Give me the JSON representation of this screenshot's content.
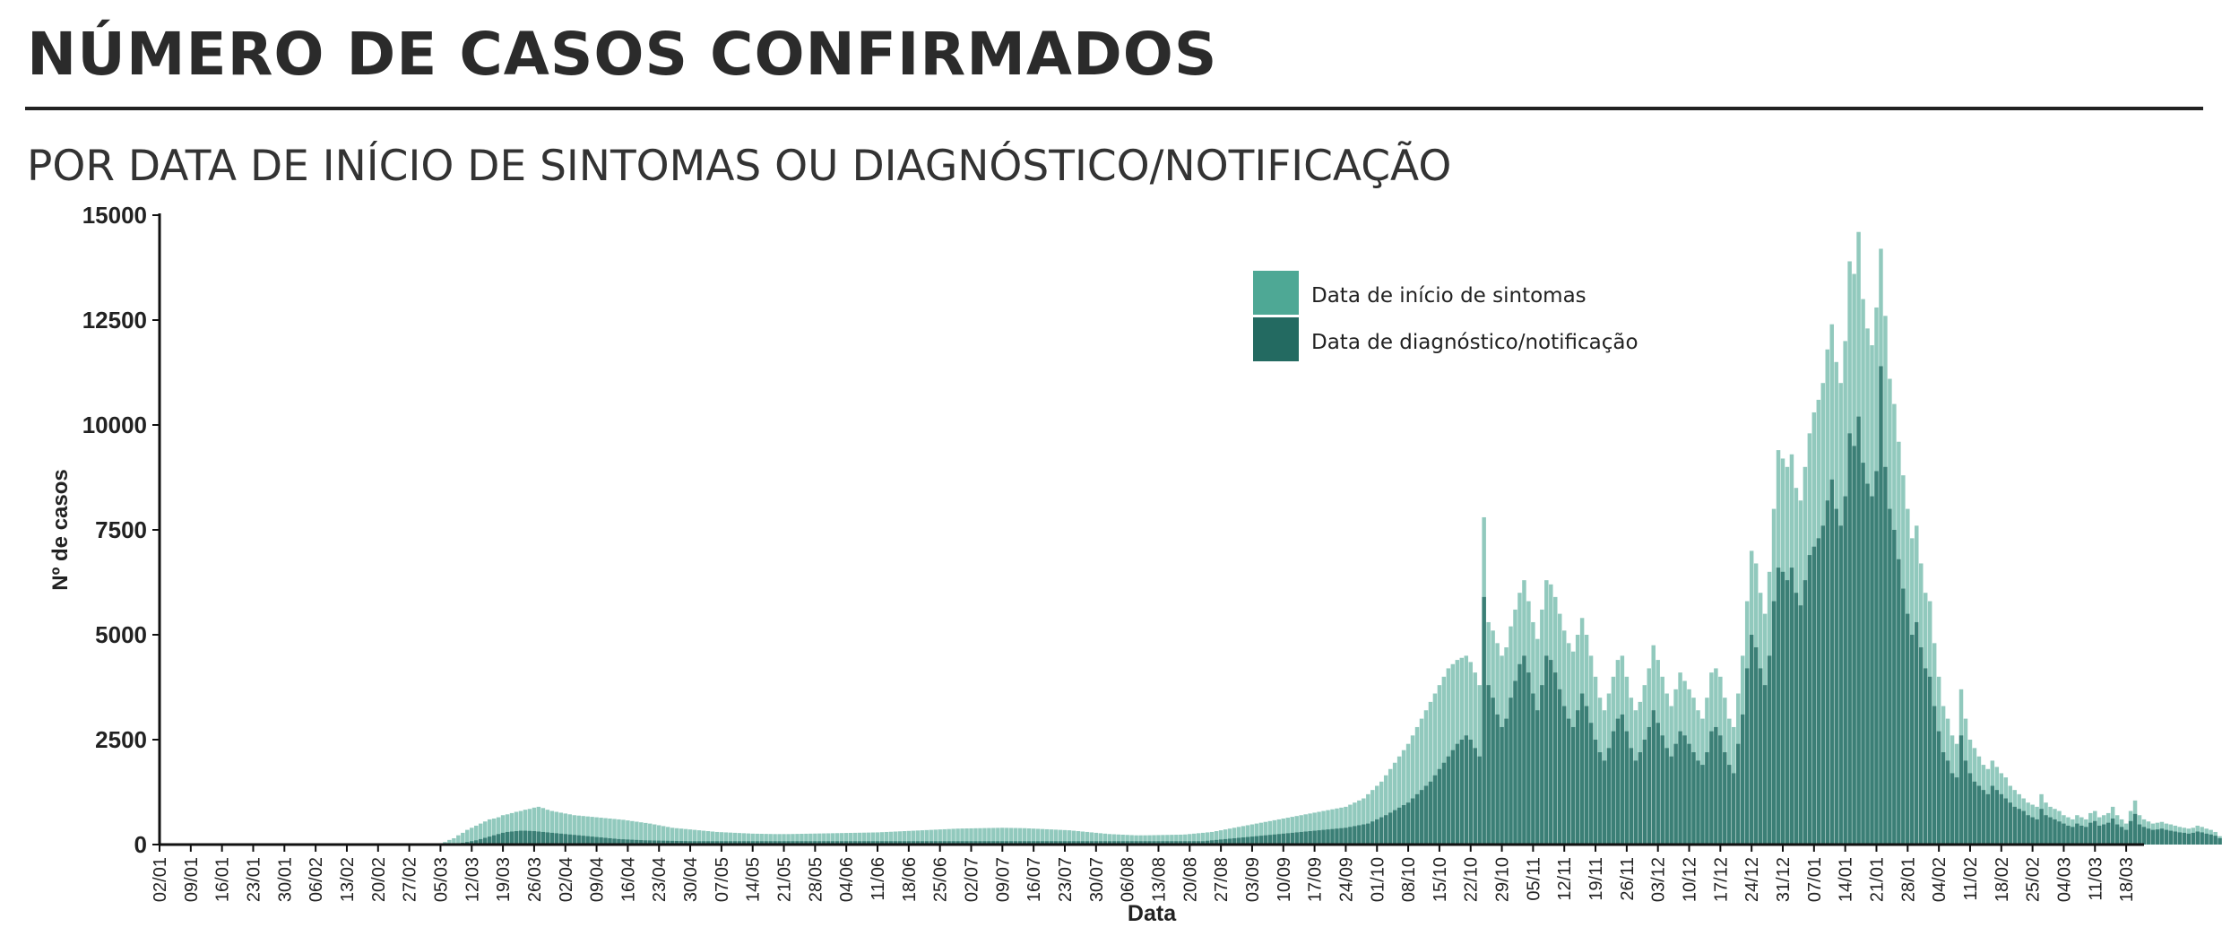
{
  "title": "NÚMERO DE CASOS CONFIRMADOS",
  "subtitle": "POR DATA DE INÍCIO DE SINTOMAS OU DIAGNÓSTICO/NOTIFICAÇÃO",
  "colors": {
    "symptoms": "#4ea895",
    "diagnosis": "#236a61",
    "axis": "#111111",
    "text": "#222222"
  },
  "chart_data": {
    "type": "bar",
    "xlabel": "Data",
    "ylabel": "Nº de casos",
    "ylim": [
      0,
      15000
    ],
    "yticks": [
      0,
      2500,
      5000,
      7500,
      10000,
      12500,
      15000
    ],
    "grid": false,
    "legend_position": "top-center",
    "bar_mode": "overlay",
    "start_date": "2020-01-02",
    "end_date": "2021-03-22",
    "xtick_labels": [
      "02/01",
      "09/01",
      "16/01",
      "23/01",
      "30/01",
      "06/02",
      "13/02",
      "20/02",
      "27/02",
      "05/03",
      "12/03",
      "19/03",
      "26/03",
      "02/04",
      "09/04",
      "16/04",
      "23/04",
      "30/04",
      "07/05",
      "14/05",
      "21/05",
      "28/05",
      "04/06",
      "11/06",
      "18/06",
      "25/06",
      "02/07",
      "09/07",
      "16/07",
      "23/07",
      "30/07",
      "06/08",
      "13/08",
      "20/08",
      "27/08",
      "03/09",
      "10/09",
      "17/09",
      "24/09",
      "01/10",
      "08/10",
      "15/10",
      "22/10",
      "29/10",
      "05/11",
      "12/11",
      "19/11",
      "26/11",
      "03/12",
      "10/12",
      "17/12",
      "24/12",
      "31/12",
      "07/01",
      "14/01",
      "21/01",
      "28/01",
      "04/02",
      "11/02",
      "18/02",
      "25/02",
      "04/03",
      "11/03",
      "18/03"
    ],
    "series": [
      {
        "name": "Data de início de sintomas",
        "x_start": "2020-03-02",
        "values": [
          0,
          0,
          5,
          30,
          60,
          110,
          150,
          220,
          280,
          350,
          400,
          450,
          500,
          550,
          600,
          620,
          650,
          700,
          720,
          750,
          780,
          800,
          830,
          850,
          880,
          900,
          870,
          830,
          800,
          780,
          760,
          740,
          720,
          700,
          690,
          680,
          670,
          660,
          650,
          640,
          630,
          620,
          610,
          600,
          590,
          575,
          560,
          545,
          530,
          515,
          500,
          480,
          460,
          440,
          420,
          400,
          390,
          380,
          370,
          360,
          350,
          340,
          330,
          320,
          310,
          300,
          295,
          290,
          285,
          280,
          275,
          270,
          265,
          260,
          258,
          256,
          254,
          252,
          250,
          250,
          250,
          250,
          252,
          254,
          256,
          258,
          260,
          262,
          264,
          266,
          268,
          270,
          272,
          274,
          276,
          278,
          280,
          282,
          284,
          286,
          288,
          290,
          295,
          300,
          305,
          310,
          315,
          320,
          325,
          330,
          335,
          340,
          345,
          350,
          355,
          360,
          365,
          370,
          375,
          380,
          382,
          384,
          386,
          388,
          390,
          392,
          394,
          396,
          398,
          400,
          398,
          396,
          394,
          392,
          390,
          385,
          380,
          375,
          370,
          365,
          360,
          355,
          350,
          345,
          340,
          330,
          320,
          310,
          300,
          290,
          280,
          270,
          260,
          250,
          245,
          240,
          235,
          230,
          225,
          220,
          220,
          220,
          222,
          224,
          226,
          228,
          230,
          232,
          234,
          236,
          240,
          250,
          260,
          270,
          280,
          290,
          300,
          320,
          340,
          360,
          380,
          400,
          420,
          440,
          460,
          480,
          500,
          520,
          540,
          560,
          580,
          600,
          620,
          640,
          660,
          680,
          700,
          720,
          740,
          760,
          780,
          800,
          820,
          840,
          860,
          880,
          900,
          950,
          1000,
          1050,
          1100,
          1200,
          1300,
          1400,
          1500,
          1650,
          1800,
          1950,
          2100,
          2250,
          2400,
          2600,
          2800,
          3000,
          3200,
          3400,
          3600,
          3800,
          4000,
          4200,
          4300,
          4400,
          4450,
          4500,
          4350,
          4100,
          3800,
          7800,
          5300,
          5100,
          4800,
          4500,
          4700,
          5200,
          5600,
          6000,
          6300,
          5800,
          5300,
          4900,
          5600,
          6300,
          6200,
          5900,
          5500,
          5100,
          4800,
          4600,
          5000,
          5400,
          5000,
          4500,
          4000,
          3500,
          3200,
          3600,
          4000,
          4400,
          4500,
          4000,
          3500,
          3200,
          3400,
          3800,
          4200,
          4750,
          4400,
          4000,
          3600,
          3300,
          3700,
          4100,
          3900,
          3700,
          3500,
          3200,
          3000,
          3500,
          4100,
          4200,
          4000,
          3500,
          3000,
          2800,
          3600,
          4500,
          5800,
          7000,
          6700,
          6000,
          5500,
          6500,
          8000,
          9400,
          9200,
          9000,
          9300,
          8500,
          8200,
          9000,
          9800,
          10300,
          10600,
          11000,
          11800,
          12400,
          11500,
          11000,
          12000,
          13900,
          13600,
          14600,
          13000,
          12300,
          11900,
          12800,
          14200,
          12600,
          11100,
          10500,
          9600,
          8800,
          8000,
          7300,
          7600,
          6700,
          6000,
          5800,
          4800,
          4000,
          3300,
          3000,
          2600,
          2400,
          3700,
          3000,
          2500,
          2300,
          2100,
          1900,
          1800,
          2000,
          1850,
          1700,
          1600,
          1400,
          1300,
          1200,
          1100,
          1000,
          950,
          900,
          1200,
          1000,
          900,
          850,
          800,
          700,
          650,
          600,
          700,
          650,
          600,
          750,
          800,
          650,
          700,
          750,
          900,
          700,
          600,
          500,
          800,
          1050,
          700,
          600,
          550,
          500,
          520,
          540,
          500,
          480,
          450,
          420,
          400,
          380,
          400,
          450,
          420,
          380,
          350,
          300,
          200,
          400,
          480
        ]
      },
      {
        "name": "Data de diagnóstico/notificação",
        "x_start": "2020-03-02",
        "values": [
          0,
          0,
          0,
          0,
          2,
          5,
          10,
          20,
          40,
          60,
          80,
          100,
          130,
          160,
          190,
          220,
          250,
          280,
          300,
          310,
          320,
          330,
          330,
          325,
          320,
          310,
          300,
          290,
          280,
          270,
          260,
          250,
          240,
          230,
          220,
          210,
          200,
          190,
          180,
          170,
          160,
          150,
          140,
          130,
          125,
          120,
          115,
          110,
          105,
          100,
          98,
          96,
          94,
          92,
          90,
          88,
          86,
          84,
          82,
          80,
          80,
          80,
          80,
          80,
          80,
          80,
          80,
          80,
          80,
          80,
          80,
          80,
          80,
          80,
          80,
          80,
          80,
          80,
          80,
          80,
          80,
          80,
          80,
          80,
          80,
          80,
          80,
          80,
          80,
          80,
          80,
          80,
          80,
          80,
          80,
          80,
          80,
          80,
          80,
          80,
          80,
          80,
          80,
          80,
          80,
          80,
          80,
          80,
          80,
          80,
          80,
          80,
          80,
          80,
          80,
          80,
          80,
          80,
          80,
          80,
          80,
          80,
          80,
          80,
          80,
          80,
          80,
          80,
          80,
          80,
          80,
          80,
          80,
          80,
          80,
          80,
          80,
          80,
          80,
          80,
          80,
          80,
          80,
          80,
          80,
          80,
          80,
          80,
          80,
          80,
          80,
          80,
          80,
          80,
          80,
          80,
          80,
          80,
          80,
          80,
          80,
          80,
          80,
          80,
          80,
          80,
          80,
          80,
          80,
          80,
          80,
          80,
          80,
          80,
          80,
          90,
          100,
          110,
          120,
          130,
          140,
          150,
          160,
          170,
          180,
          190,
          200,
          210,
          220,
          230,
          240,
          250,
          260,
          270,
          280,
          290,
          300,
          310,
          320,
          330,
          340,
          350,
          360,
          370,
          380,
          390,
          400,
          420,
          440,
          460,
          480,
          500,
          550,
          600,
          650,
          700,
          760,
          820,
          880,
          940,
          1000,
          1100,
          1200,
          1300,
          1400,
          1500,
          1650,
          1800,
          1950,
          2100,
          2250,
          2400,
          2500,
          2600,
          2500,
          2300,
          2100,
          5900,
          3800,
          3500,
          3100,
          2800,
          3000,
          3500,
          3900,
          4300,
          4500,
          4100,
          3600,
          3200,
          3800,
          4500,
          4400,
          4100,
          3700,
          3300,
          3000,
          2800,
          3200,
          3600,
          3300,
          2900,
          2500,
          2200,
          2000,
          2300,
          2700,
          3000,
          3100,
          2700,
          2300,
          2000,
          2200,
          2500,
          2800,
          3200,
          2900,
          2600,
          2300,
          2100,
          2400,
          2700,
          2600,
          2400,
          2200,
          2000,
          1900,
          2200,
          2700,
          2800,
          2600,
          2200,
          1900,
          1700,
          2400,
          3100,
          4200,
          5000,
          4700,
          4200,
          3800,
          4500,
          5800,
          6600,
          6500,
          6300,
          6600,
          6000,
          5700,
          6300,
          6900,
          7100,
          7300,
          7600,
          8200,
          8700,
          8000,
          7600,
          8300,
          9800,
          9500,
          10200,
          9100,
          8600,
          8300,
          8900,
          11400,
          9000,
          8000,
          7500,
          6800,
          6100,
          5500,
          5000,
          5300,
          4700,
          4200,
          4000,
          3300,
          2700,
          2200,
          2000,
          1700,
          1600,
          2600,
          2000,
          1700,
          1500,
          1400,
          1300,
          1200,
          1400,
          1300,
          1200,
          1100,
          1000,
          900,
          850,
          800,
          700,
          650,
          600,
          850,
          700,
          650,
          600,
          550,
          500,
          450,
          420,
          500,
          450,
          420,
          520,
          560,
          450,
          480,
          520,
          620,
          480,
          420,
          350,
          560,
          730,
          480,
          420,
          380,
          350,
          360,
          380,
          350,
          330,
          310,
          290,
          280,
          260,
          280,
          310,
          290,
          260,
          240,
          210,
          150,
          280,
          330
        ]
      }
    ]
  }
}
